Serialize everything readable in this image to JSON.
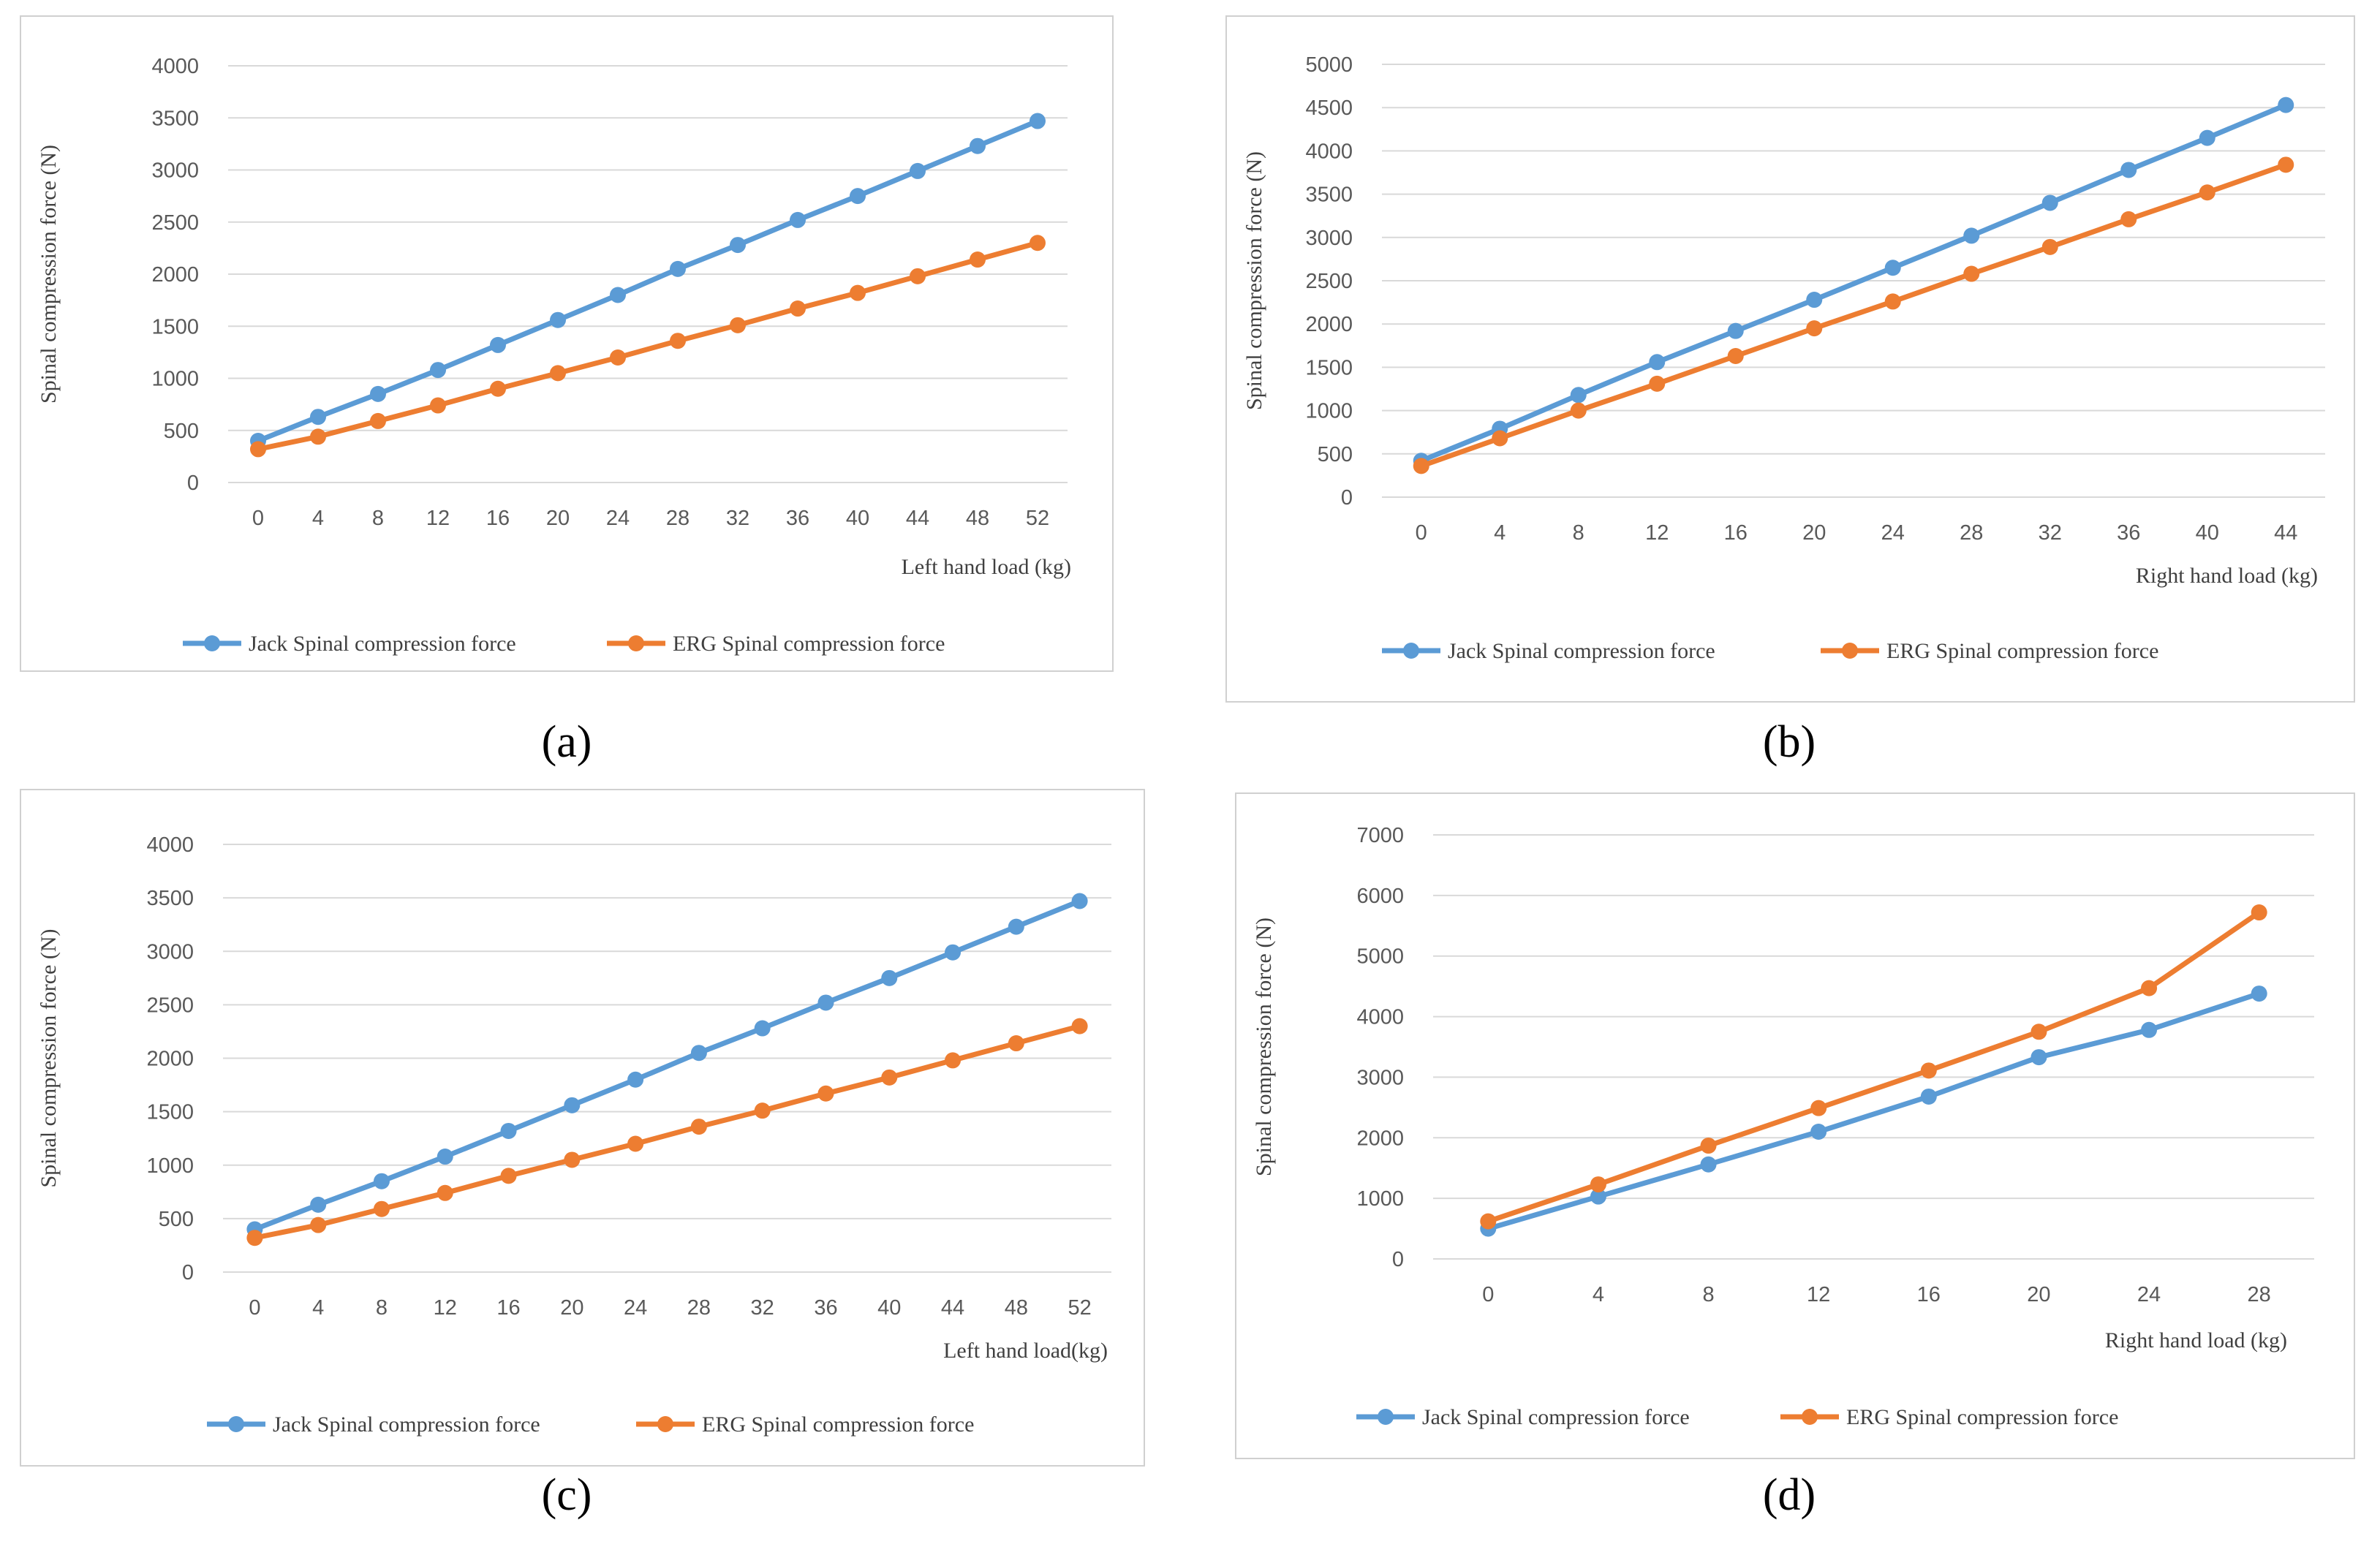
{
  "colors": {
    "jack": "#5B9BD5",
    "erg": "#ED7D31",
    "grid": "#d9d9d9",
    "axis_text": "#595959",
    "frame": "#d0d0d0"
  },
  "chart_data": [
    {
      "type": "line",
      "panel": "a",
      "caption": "(a)",
      "xlabel": "Left hand load (kg)",
      "ylabel": "Spinal compression force (N)",
      "x": [
        0,
        4,
        8,
        12,
        16,
        20,
        24,
        28,
        32,
        36,
        40,
        44,
        48,
        52
      ],
      "ylim": [
        0,
        4000
      ],
      "yticks": [
        0,
        500,
        1000,
        1500,
        2000,
        2500,
        3000,
        3500,
        4000
      ],
      "series": [
        {
          "name": "Jack Spinal compression force",
          "values": [
            400,
            630,
            850,
            1080,
            1320,
            1560,
            1800,
            2050,
            2280,
            2520,
            2750,
            2990,
            3230,
            3470
          ]
        },
        {
          "name": "ERG  Spinal compression force",
          "values": [
            320,
            440,
            590,
            740,
            900,
            1050,
            1200,
            1360,
            1510,
            1670,
            1820,
            1980,
            2140,
            2300
          ]
        }
      ],
      "grid": true,
      "legend": "bottom"
    },
    {
      "type": "line",
      "panel": "b",
      "caption": "(b)",
      "xlabel": "Right hand load (kg)",
      "ylabel": "Spinal compression force (N)",
      "x": [
        0,
        4,
        8,
        12,
        16,
        20,
        24,
        28,
        32,
        36,
        40,
        44
      ],
      "ylim": [
        0,
        5000
      ],
      "yticks": [
        0,
        500,
        1000,
        1500,
        2000,
        2500,
        3000,
        3500,
        4000,
        4500,
        5000
      ],
      "series": [
        {
          "name": "Jack Spinal compression force",
          "values": [
            420,
            790,
            1180,
            1560,
            1920,
            2280,
            2650,
            3020,
            3400,
            3780,
            4150,
            4530
          ]
        },
        {
          "name": "ERG  Spinal compression force",
          "values": [
            360,
            680,
            1000,
            1310,
            1630,
            1950,
            2260,
            2580,
            2890,
            3210,
            3520,
            3840
          ]
        }
      ],
      "grid": true,
      "legend": "bottom"
    },
    {
      "type": "line",
      "panel": "c",
      "caption": "(c)",
      "xlabel": "Left hand load(kg)",
      "ylabel": "Spinal compression force (N)",
      "x": [
        0,
        4,
        8,
        12,
        16,
        20,
        24,
        28,
        32,
        36,
        40,
        44,
        48,
        52
      ],
      "ylim": [
        0,
        4000
      ],
      "yticks": [
        0,
        500,
        1000,
        1500,
        2000,
        2500,
        3000,
        3500,
        4000
      ],
      "series": [
        {
          "name": "Jack Spinal compression force",
          "values": [
            400,
            630,
            850,
            1080,
            1320,
            1560,
            1800,
            2050,
            2280,
            2520,
            2750,
            2990,
            3230,
            3470
          ]
        },
        {
          "name": "ERG  Spinal compression force",
          "values": [
            320,
            440,
            590,
            740,
            900,
            1050,
            1200,
            1360,
            1510,
            1670,
            1820,
            1980,
            2140,
            2300
          ]
        }
      ],
      "grid": true,
      "legend": "bottom"
    },
    {
      "type": "line",
      "panel": "d",
      "caption": "(d)",
      "xlabel": "Right hand load (kg)",
      "ylabel": "Spinal compression force (N)",
      "x": [
        0,
        4,
        8,
        12,
        16,
        20,
        24,
        28
      ],
      "ylim": [
        0,
        7000
      ],
      "yticks": [
        0,
        1000,
        2000,
        3000,
        4000,
        5000,
        6000,
        7000
      ],
      "series": [
        {
          "name": "Jack Spinal compression force",
          "values": [
            500,
            1030,
            1560,
            2100,
            2680,
            3330,
            3780,
            4380
          ]
        },
        {
          "name": "ERG  Spinal compression force",
          "values": [
            620,
            1230,
            1870,
            2490,
            3110,
            3750,
            4470,
            5720
          ]
        }
      ],
      "grid": true,
      "legend": "bottom"
    }
  ]
}
